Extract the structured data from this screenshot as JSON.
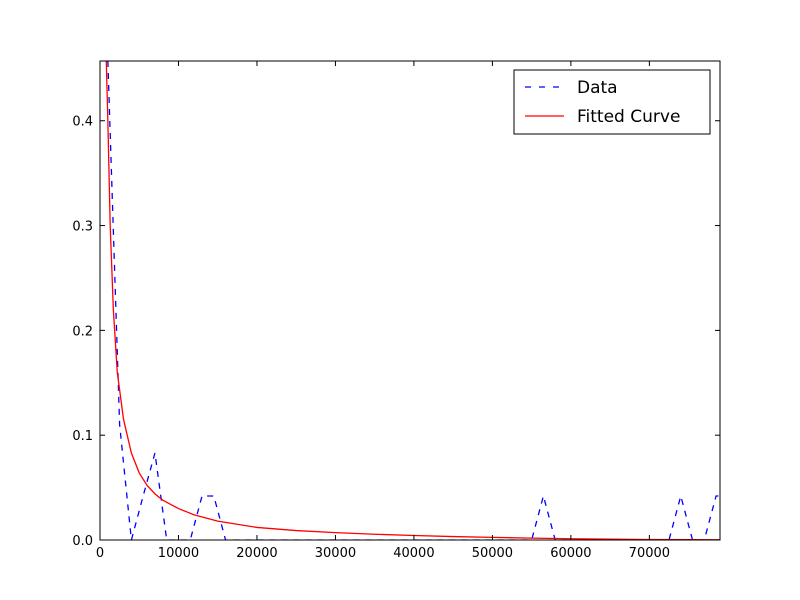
{
  "chart_data": {
    "type": "line",
    "title": "",
    "xlabel": "",
    "ylabel": "",
    "xlim": [
      0,
      79000
    ],
    "ylim": [
      0,
      0.457
    ],
    "grid": false,
    "legend_position": "top-right",
    "xticks": [
      0,
      10000,
      20000,
      30000,
      40000,
      50000,
      60000,
      70000
    ],
    "xtick_labels": [
      "0",
      "10000",
      "20000",
      "30000",
      "40000",
      "50000",
      "60000",
      "70000"
    ],
    "yticks": [
      0.0,
      0.1,
      0.2,
      0.3,
      0.4
    ],
    "ytick_labels": [
      "0.0",
      "0.1",
      "0.2",
      "0.3",
      "0.4"
    ],
    "series": [
      {
        "name": "Data",
        "color": "#0000ff",
        "style": "dashed",
        "x": [
          1000,
          2500,
          4000,
          5500,
          7000,
          8500,
          10000,
          11500,
          13000,
          14500,
          16000,
          17500,
          19000,
          55000,
          56500,
          58000,
          72500,
          74000,
          75500,
          77000,
          78500,
          79000
        ],
        "y": [
          0.457,
          0.11,
          0.0,
          0.042,
          0.083,
          0.0,
          0.0,
          0.0,
          0.042,
          0.042,
          0.0,
          0.0,
          0.0,
          0.0,
          0.042,
          0.0,
          0.0,
          0.042,
          0.0,
          0.0,
          0.042,
          0.042
        ]
      },
      {
        "name": "Fitted Curve",
        "color": "#ff0000",
        "style": "solid",
        "x": [
          800,
          1000,
          1300,
          1700,
          2200,
          3000,
          4000,
          5000,
          6000,
          7000,
          8000,
          10000,
          12000,
          15000,
          20000,
          25000,
          30000,
          35000,
          40000,
          45000,
          50000,
          55000,
          60000,
          65000,
          70000,
          75000,
          79000
        ],
        "y": [
          0.457,
          0.4,
          0.3,
          0.22,
          0.16,
          0.115,
          0.083,
          0.064,
          0.052,
          0.044,
          0.038,
          0.03,
          0.024,
          0.018,
          0.012,
          0.009,
          0.007,
          0.0055,
          0.0043,
          0.0033,
          0.0025,
          0.0018,
          0.0012,
          0.0008,
          0.0005,
          0.0003,
          0.0002
        ]
      }
    ]
  }
}
